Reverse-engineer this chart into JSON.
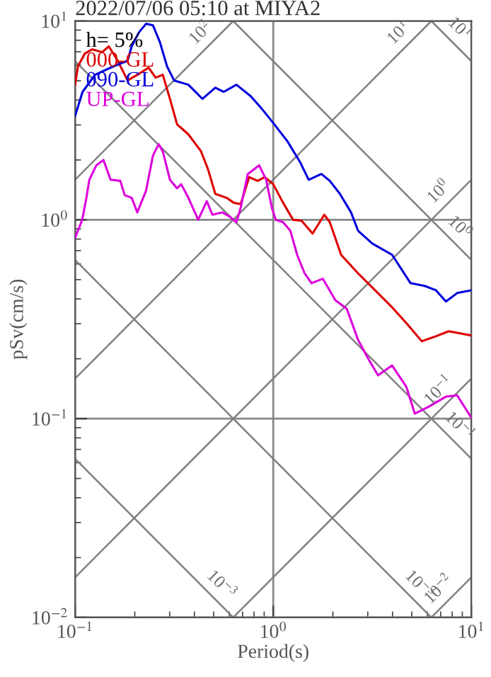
{
  "chart_data": {
    "type": "line",
    "title": "2022/07/06 05:10 at MIYA2",
    "xlabel": "Period(s)",
    "ylabel": "pSv(cm/s)",
    "legend_title": "h= 5%",
    "legend": "top left",
    "log": "xy",
    "grid": true,
    "xlim": [
      0.1,
      10
    ],
    "ylim": [
      0.01,
      10
    ],
    "xticks": [
      {
        "value": 0.1,
        "label": "10$^{−1}$"
      },
      {
        "value": 1,
        "label": "10$^{0}$"
      },
      {
        "value": 10,
        "label": "10$^{1}$"
      }
    ],
    "yticks": [
      {
        "value": 0.01,
        "label": "10$^{−2}$"
      },
      {
        "value": 0.1,
        "label": "10$^{−1}$"
      },
      {
        "value": 1,
        "label": "10$^{0}$"
      },
      {
        "value": 10,
        "label": "10$^{1}$"
      }
    ],
    "series": [
      {
        "name": "000-GL",
        "color": "#dd0000",
        "x": [
          0.1,
          0.1033,
          0.112,
          0.122,
          0.137,
          0.148,
          0.164,
          0.184,
          0.206,
          0.235,
          0.255,
          0.277,
          0.301,
          0.327,
          0.373,
          0.432,
          0.469,
          0.51,
          0.581,
          0.631,
          0.685,
          0.756,
          0.834,
          0.906,
          1.0,
          1.12,
          1.26,
          1.39,
          1.58,
          1.81,
          1.93,
          2.2,
          2.68,
          3.16,
          3.98,
          4.69,
          5.62,
          6.52,
          7.69,
          10
        ],
        "values": [
          4.78,
          5.91,
          6.86,
          7.2,
          6.97,
          7.45,
          6.31,
          5.02,
          5.36,
          5.82,
          5.19,
          5.36,
          4.06,
          3.02,
          2.69,
          2.21,
          1.79,
          1.35,
          1.29,
          1.22,
          1.2,
          1.64,
          1.57,
          1.64,
          1.51,
          1.22,
          1.0,
          0.989,
          0.853,
          1.06,
          0.973,
          0.667,
          0.538,
          0.457,
          0.363,
          0.303,
          0.245,
          0.258,
          0.275,
          0.262
        ]
      },
      {
        "name": "090-GL",
        "color": "#0000dd",
        "x": [
          0.1,
          0.109,
          0.126,
          0.156,
          0.184,
          0.193,
          0.21,
          0.228,
          0.247,
          0.268,
          0.291,
          0.316,
          0.373,
          0.439,
          0.51,
          0.562,
          0.652,
          0.769,
          0.877,
          1.0,
          1.18,
          1.37,
          1.51,
          1.75,
          1.93,
          2.17,
          2.47,
          2.68,
          3.16,
          3.98,
          4.93,
          5.81,
          6.63,
          7.44,
          8.48,
          10
        ],
        "values": [
          3.33,
          4.4,
          5.36,
          5.91,
          6.31,
          7.45,
          8.77,
          9.68,
          9.52,
          7.82,
          5.91,
          5.02,
          4.78,
          4.06,
          4.62,
          4.4,
          4.78,
          4.19,
          3.61,
          3.07,
          2.48,
          1.94,
          1.59,
          1.7,
          1.57,
          1.35,
          1.09,
          0.881,
          0.76,
          0.667,
          0.48,
          0.465,
          0.442,
          0.388,
          0.428,
          0.442
        ]
      },
      {
        "name": "UP-GL",
        "color": "#dd00dd",
        "x": [
          0.1,
          0.1086,
          0.114,
          0.118,
          0.128,
          0.139,
          0.151,
          0.169,
          0.178,
          0.193,
          0.206,
          0.228,
          0.247,
          0.264,
          0.277,
          0.301,
          0.327,
          0.343,
          0.373,
          0.418,
          0.462,
          0.493,
          0.553,
          0.601,
          0.652,
          0.685,
          0.744,
          0.849,
          0.921,
          0.984,
          1.03,
          1.12,
          1.22,
          1.32,
          1.44,
          1.56,
          1.78,
          2.06,
          2.35,
          2.68,
          3.01,
          3.38,
          3.98,
          4.69,
          5.18,
          6.11,
          7.44,
          8.48,
          10
        ],
        "values": [
          0.812,
          1.0,
          1.29,
          1.59,
          1.88,
          2.0,
          1.59,
          1.57,
          1.33,
          1.29,
          1.09,
          1.4,
          2.1,
          2.4,
          2.21,
          1.59,
          1.44,
          1.51,
          1.29,
          1.0,
          1.24,
          1.06,
          1.09,
          1.04,
          0.973,
          1.15,
          1.7,
          1.88,
          1.59,
          1.15,
          1.0,
          0.973,
          0.881,
          0.667,
          0.538,
          0.48,
          0.505,
          0.394,
          0.357,
          0.249,
          0.201,
          0.165,
          0.185,
          0.145,
          0.106,
          0.115,
          0.129,
          0.131,
          0.101
        ]
      },
      {
        "name": "10$^{2}$",
        "type": "line",
        "color": "#808080",
        "x": [
          0.1,
          0.628
        ],
        "values": [
          1.59,
          10
        ]
      },
      {
        "name": "10$^{1}$",
        "type": "line",
        "color": "#808080",
        "x": [
          0.1,
          6.28
        ],
        "values": [
          0.159,
          10
        ]
      },
      {
        "name": "10$^{0}$",
        "type": "line",
        "color": "#808080",
        "x": [
          0.1,
          10
        ],
        "values": [
          0.0159,
          1.59
        ]
      },
      {
        "name": "10$^{−1}$",
        "type": "line",
        "color": "#808080",
        "x": [
          0.628,
          10
        ],
        "values": [
          0.01,
          0.159
        ]
      },
      {
        "name": "10$^{−2}$",
        "type": "line",
        "color": "#808080",
        "x": [
          6.28,
          10
        ],
        "values": [
          0.01,
          0.0159
        ]
      },
      {
        "name": "10$^{1}$",
        "type": "line",
        "color": "#808080",
        "x": [
          6.28,
          10
        ],
        "values": [
          10,
          6.28
        ]
      },
      {
        "name": "10$^{0}$",
        "type": "line",
        "color": "#808080",
        "x": [
          0.628,
          10
        ],
        "values": [
          10,
          0.628
        ]
      },
      {
        "name": "10$^{−1}$",
        "type": "line",
        "color": "#808080",
        "x": [
          0.1,
          10
        ],
        "values": [
          6.28,
          0.0628
        ]
      },
      {
        "name": "10$^{−3}$",
        "type": "line",
        "color": "#808080",
        "x": [
          0.1,
          6.28
        ],
        "values": [
          0.628,
          0.01
        ]
      },
      {
        "name": "10$^{−3}$",
        "type": "line",
        "color": "#808080",
        "x": [
          0.1,
          0.628
        ],
        "values": [
          0.0628,
          0.01
        ]
      }
    ]
  }
}
